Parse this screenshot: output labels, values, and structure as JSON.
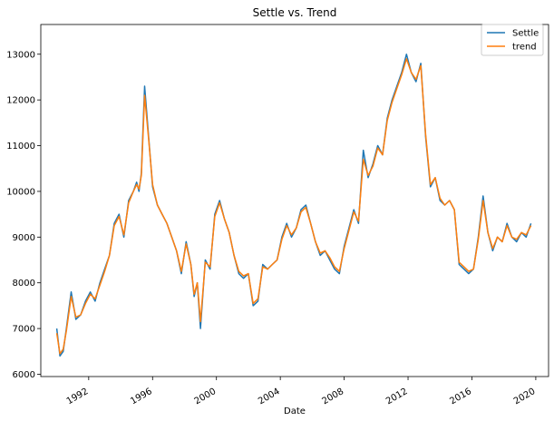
{
  "chart_data": {
    "type": "line",
    "title": "Settle vs. Trend",
    "xlabel": "Date",
    "ylabel": "",
    "xlim": [
      1989.0,
      2020.8
    ],
    "ylim": [
      5950,
      13650
    ],
    "x_ticks": [
      1992,
      1996,
      2000,
      2004,
      2008,
      2012,
      2016,
      2020
    ],
    "y_ticks": [
      6000,
      7000,
      8000,
      9000,
      10000,
      11000,
      12000,
      13000
    ],
    "grid": false,
    "legend_position": "upper right",
    "series": [
      {
        "name": "Settle",
        "color": "#1f77b4",
        "x": [
          1990.0,
          1990.2,
          1990.4,
          1990.6,
          1990.9,
          1991.2,
          1991.5,
          1991.8,
          1992.1,
          1992.4,
          1992.7,
          1993.0,
          1993.3,
          1993.6,
          1993.9,
          1994.2,
          1994.5,
          1994.8,
          1995.0,
          1995.15,
          1995.3,
          1995.5,
          1995.75,
          1996.0,
          1996.3,
          1996.6,
          1996.9,
          1997.2,
          1997.5,
          1997.8,
          1998.1,
          1998.4,
          1998.6,
          1998.8,
          1999.0,
          1999.3,
          1999.6,
          1999.9,
          2000.2,
          2000.5,
          2000.8,
          2001.1,
          2001.4,
          2001.7,
          2002.0,
          2002.3,
          2002.6,
          2002.9,
          2003.2,
          2003.5,
          2003.8,
          2004.1,
          2004.4,
          2004.7,
          2005.0,
          2005.3,
          2005.6,
          2005.9,
          2006.2,
          2006.5,
          2006.8,
          2007.1,
          2007.4,
          2007.7,
          2008.0,
          2008.3,
          2008.6,
          2008.9,
          2009.2,
          2009.5,
          2009.8,
          2010.1,
          2010.4,
          2010.7,
          2011.0,
          2011.3,
          2011.6,
          2011.9,
          2012.2,
          2012.5,
          2012.8,
          2013.1,
          2013.4,
          2013.7,
          2014.0,
          2014.3,
          2014.6,
          2014.9,
          2015.2,
          2015.5,
          2015.8,
          2016.1,
          2016.4,
          2016.7,
          2017.0,
          2017.3,
          2017.6,
          2017.9,
          2018.2,
          2018.5,
          2018.8,
          2019.1,
          2019.4,
          2019.7
        ],
        "values": [
          7000,
          6400,
          6500,
          7000,
          7800,
          7200,
          7300,
          7600,
          7800,
          7600,
          8000,
          8300,
          8600,
          9300,
          9500,
          9000,
          9800,
          10000,
          10200,
          10000,
          10400,
          12300,
          11200,
          10100,
          9700,
          9500,
          9300,
          9000,
          8700,
          8200,
          8900,
          8400,
          7700,
          8000,
          7000,
          8500,
          8300,
          9500,
          9800,
          9400,
          9100,
          8600,
          8200,
          8100,
          8200,
          7500,
          7600,
          8400,
          8300,
          8400,
          8500,
          9000,
          9300,
          9000,
          9200,
          9600,
          9700,
          9300,
          8900,
          8600,
          8700,
          8500,
          8300,
          8200,
          8800,
          9200,
          9600,
          9300,
          10900,
          10300,
          10600,
          11000,
          10800,
          11600,
          12000,
          12300,
          12600,
          13000,
          12600,
          12400,
          12800,
          11200,
          10100,
          10300,
          9800,
          9700,
          9800,
          9600,
          8400,
          8300,
          8200,
          8300,
          9000,
          9900,
          9100,
          8700,
          9000,
          8900,
          9300,
          9000,
          8900,
          9100,
          9000,
          9300
        ]
      },
      {
        "name": "trend",
        "color": "#ff7f0e",
        "x": [
          1990.0,
          1990.2,
          1990.4,
          1990.6,
          1990.9,
          1991.2,
          1991.5,
          1991.8,
          1992.1,
          1992.4,
          1992.7,
          1993.0,
          1993.3,
          1993.6,
          1993.9,
          1994.2,
          1994.5,
          1994.8,
          1995.0,
          1995.15,
          1995.3,
          1995.5,
          1995.75,
          1996.0,
          1996.3,
          1996.6,
          1996.9,
          1997.2,
          1997.5,
          1997.8,
          1998.1,
          1998.4,
          1998.6,
          1998.8,
          1999.0,
          1999.3,
          1999.6,
          1999.9,
          2000.2,
          2000.5,
          2000.8,
          2001.1,
          2001.4,
          2001.7,
          2002.0,
          2002.3,
          2002.6,
          2002.9,
          2003.2,
          2003.5,
          2003.8,
          2004.1,
          2004.4,
          2004.7,
          2005.0,
          2005.3,
          2005.6,
          2005.9,
          2006.2,
          2006.5,
          2006.8,
          2007.1,
          2007.4,
          2007.7,
          2008.0,
          2008.3,
          2008.6,
          2008.9,
          2009.2,
          2009.5,
          2009.8,
          2010.1,
          2010.4,
          2010.7,
          2011.0,
          2011.3,
          2011.6,
          2011.9,
          2012.2,
          2012.5,
          2012.8,
          2013.1,
          2013.4,
          2013.7,
          2014.0,
          2014.3,
          2014.6,
          2014.9,
          2015.2,
          2015.5,
          2015.8,
          2016.1,
          2016.4,
          2016.7,
          2017.0,
          2017.3,
          2017.6,
          2017.9,
          2018.2,
          2018.5,
          2018.8,
          2019.1,
          2019.4,
          2019.7
        ],
        "values": [
          6900,
          6450,
          6550,
          6950,
          7700,
          7250,
          7300,
          7550,
          7750,
          7650,
          7950,
          8250,
          8600,
          9250,
          9450,
          9050,
          9750,
          10000,
          10150,
          10050,
          10350,
          12100,
          11150,
          10150,
          9700,
          9500,
          9300,
          9000,
          8700,
          8250,
          8850,
          8400,
          7750,
          8000,
          7150,
          8450,
          8350,
          9450,
          9750,
          9400,
          9100,
          8600,
          8250,
          8150,
          8200,
          7550,
          7650,
          8350,
          8300,
          8400,
          8500,
          8950,
          9250,
          9050,
          9200,
          9550,
          9650,
          9300,
          8900,
          8650,
          8700,
          8550,
          8350,
          8250,
          8750,
          9150,
          9550,
          9350,
          10700,
          10350,
          10550,
          10950,
          10800,
          11550,
          11950,
          12250,
          12550,
          12900,
          12600,
          12450,
          12750,
          11250,
          10150,
          10300,
          9850,
          9700,
          9800,
          9600,
          8450,
          8350,
          8250,
          8300,
          8950,
          9800,
          9100,
          8750,
          9000,
          8900,
          9250,
          9000,
          8950,
          9100,
          9050,
          9250
        ]
      }
    ]
  }
}
